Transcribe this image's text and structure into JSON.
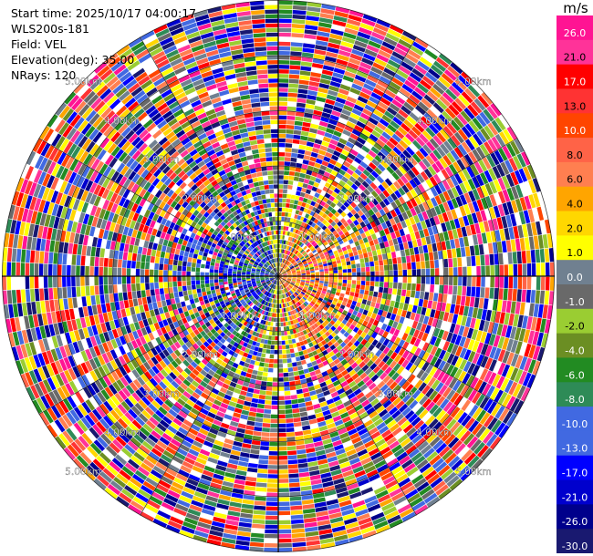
{
  "info": {
    "start_time": "Start time: 2025/10/17 04:00:17",
    "instrument": "WLS200s-181",
    "field": "Field: VEL",
    "elevation": "Elevation(deg): 35.00",
    "nrays": "NRays: 120"
  },
  "range_labels": [
    "1.00km",
    "2.00km",
    "3.00km",
    "4.00km",
    "5.00km"
  ],
  "colorbar": {
    "unit": "m/s",
    "ticks": [
      "26.0",
      "21.0",
      "17.0",
      "13.0",
      "10.0",
      "8.0",
      "6.0",
      "4.0",
      "2.0",
      "1.0",
      "0.0",
      "-1.0",
      "-2.0",
      "-4.0",
      "-6.0",
      "-8.0",
      "-10.0",
      "-13.0",
      "-17.0",
      "-21.0",
      "-26.0",
      "-30.0"
    ],
    "colors": [
      "#ff1493",
      "#ff3399",
      "#ff0000",
      "#ff3333",
      "#ff4500",
      "#ff6347",
      "#ff7f50",
      "#ffa500",
      "#ffd700",
      "#ffff00",
      "#708090",
      "#696969",
      "#9acd32",
      "#6b8e23",
      "#228b22",
      "#2e8b57",
      "#4169e1",
      "#4169e1",
      "#0000ff",
      "#0000cd",
      "#00008b",
      "#191970"
    ]
  }
}
